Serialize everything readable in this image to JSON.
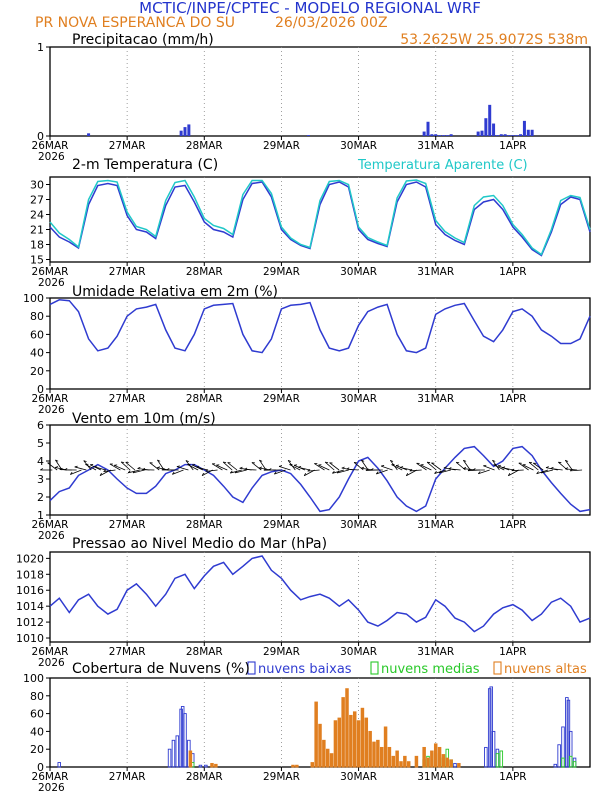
{
  "header": {
    "title": "MCTIC/INPE/CPTEC - MODELO REGIONAL WRF",
    "location": "PR NOVA ESPERANCA DO SU",
    "run": "26/03/2026 00Z",
    "coords": "53.2625W 25.9072S 538m"
  },
  "colors": {
    "blue": "#2f3bd0",
    "cyan": "#20c8c8",
    "orange": "#e07f20",
    "green": "#28c828",
    "title_blue": "#2233cc",
    "title_orange": "#e07f20"
  },
  "x_axis": {
    "ticks": [
      "26MAR",
      "27MAR",
      "28MAR",
      "29MAR",
      "30MAR",
      "31MAR",
      "1APR"
    ],
    "year": "2026"
  },
  "chart_data": [
    {
      "id": "precip",
      "type": "bar",
      "title": "Precipitacao (mm/h)",
      "ylim": [
        0,
        1
      ],
      "yticks": [
        "0",
        "1"
      ],
      "x": [
        0.5,
        1.7,
        1.75,
        1.8,
        3.35,
        4.85,
        4.9,
        4.95,
        5.0,
        5.05,
        5.1,
        5.15,
        5.2,
        5.55,
        5.6,
        5.65,
        5.7,
        5.75,
        5.8,
        5.85,
        5.9,
        5.95,
        6.0,
        6.05,
        6.1,
        6.15,
        6.2,
        6.25
      ],
      "values": [
        0.03,
        0.06,
        0.1,
        0.13,
        0.01,
        0.05,
        0.16,
        0.02,
        0.02,
        0.01,
        0.01,
        0.01,
        0.02,
        0.05,
        0.06,
        0.2,
        0.35,
        0.14,
        0.01,
        0.02,
        0.02,
        0.01,
        0.01,
        0.01,
        0.02,
        0.17,
        0.07,
        0.07
      ]
    },
    {
      "id": "temperature",
      "type": "line",
      "title": "2-m Temperatura (C)",
      "legend": "Temperatura Aparente (C)",
      "ylim": [
        14.5,
        31.5
      ],
      "yticks": [
        "15",
        "18",
        "21",
        "24",
        "27",
        "30"
      ],
      "series": [
        {
          "name": "2-m Temperatura (C)",
          "x": [
            0,
            0.12,
            0.25,
            0.37,
            0.5,
            0.62,
            0.75,
            0.87,
            1.0,
            1.12,
            1.25,
            1.37,
            1.5,
            1.62,
            1.75,
            1.87,
            2.0,
            2.12,
            2.25,
            2.37,
            2.5,
            2.62,
            2.75,
            2.87,
            3.0,
            3.12,
            3.25,
            3.37,
            3.5,
            3.62,
            3.75,
            3.87,
            4.0,
            4.12,
            4.25,
            4.37,
            4.5,
            4.62,
            4.75,
            4.87,
            5.0,
            5.12,
            5.25,
            5.37,
            5.5,
            5.62,
            5.75,
            5.87,
            6.0,
            6.12,
            6.25,
            6.37,
            6.5,
            6.62,
            6.75,
            6.87,
            7.0
          ],
          "values": [
            21.5,
            19.5,
            18.5,
            17.3,
            26.0,
            29.8,
            30.2,
            29.8,
            23.8,
            21.0,
            20.5,
            19.2,
            25.8,
            29.5,
            29.8,
            26.5,
            22.5,
            21.0,
            20.5,
            19.5,
            27.0,
            30.2,
            30.5,
            27.5,
            21.0,
            19.0,
            17.8,
            17.2,
            26.0,
            30.0,
            30.5,
            29.5,
            21.0,
            19.0,
            18.2,
            17.6,
            26.5,
            30.0,
            30.5,
            29.5,
            22.0,
            20.0,
            18.8,
            18.0,
            25.0,
            26.5,
            27.0,
            25.0,
            21.5,
            19.5,
            17.0,
            15.8,
            20.5,
            26.0,
            27.5,
            27.0,
            20.5
          ]
        },
        {
          "name": "Temperatura Aparente (C)",
          "x": [
            0,
            0.12,
            0.25,
            0.37,
            0.5,
            0.62,
            0.75,
            0.87,
            1.0,
            1.12,
            1.25,
            1.37,
            1.5,
            1.62,
            1.75,
            1.87,
            2.0,
            2.12,
            2.25,
            2.37,
            2.5,
            2.62,
            2.75,
            2.87,
            3.0,
            3.12,
            3.25,
            3.37,
            3.5,
            3.62,
            3.75,
            3.87,
            4.0,
            4.12,
            4.25,
            4.37,
            4.5,
            4.62,
            4.75,
            4.87,
            5.0,
            5.12,
            5.25,
            5.37,
            5.5,
            5.62,
            5.75,
            5.87,
            6.0,
            6.12,
            6.25,
            6.37,
            6.5,
            6.62,
            6.75,
            6.87,
            7.0
          ],
          "values": [
            22.5,
            20.3,
            19.0,
            17.5,
            27.0,
            30.6,
            30.8,
            30.5,
            24.5,
            21.6,
            21.0,
            19.6,
            26.8,
            30.4,
            30.8,
            27.5,
            23.2,
            21.8,
            21.2,
            20.0,
            28.0,
            30.8,
            30.8,
            28.2,
            21.5,
            19.3,
            18.0,
            17.4,
            26.8,
            30.6,
            30.8,
            30.0,
            21.5,
            19.4,
            18.5,
            17.8,
            27.3,
            30.7,
            30.9,
            30.2,
            22.8,
            20.6,
            19.3,
            18.4,
            25.8,
            27.5,
            27.8,
            25.8,
            22.0,
            20.0,
            17.3,
            16.0,
            21.0,
            26.8,
            27.8,
            27.4,
            21.0
          ]
        }
      ]
    },
    {
      "id": "humidity",
      "type": "line",
      "title": "Umidade Relativa em 2m (%)",
      "ylim": [
        0,
        100
      ],
      "yticks": [
        "0",
        "20",
        "40",
        "60",
        "80",
        "100"
      ],
      "series": [
        {
          "name": "Umidade Relativa em 2m (%)",
          "x": [
            0,
            0.12,
            0.25,
            0.37,
            0.5,
            0.62,
            0.75,
            0.87,
            1.0,
            1.12,
            1.25,
            1.37,
            1.5,
            1.62,
            1.75,
            1.87,
            2.0,
            2.12,
            2.25,
            2.37,
            2.5,
            2.62,
            2.75,
            2.87,
            3.0,
            3.12,
            3.25,
            3.37,
            3.5,
            3.62,
            3.75,
            3.87,
            4.0,
            4.12,
            4.25,
            4.37,
            4.5,
            4.62,
            4.75,
            4.87,
            5.0,
            5.12,
            5.25,
            5.37,
            5.5,
            5.62,
            5.75,
            5.87,
            6.0,
            6.12,
            6.25,
            6.37,
            6.5,
            6.62,
            6.75,
            6.87,
            7.0
          ],
          "values": [
            93,
            98,
            97,
            85,
            55,
            42,
            45,
            58,
            80,
            88,
            90,
            93,
            65,
            45,
            42,
            60,
            88,
            92,
            93,
            94,
            60,
            42,
            40,
            55,
            88,
            92,
            93,
            95,
            65,
            45,
            42,
            45,
            70,
            85,
            90,
            93,
            60,
            42,
            40,
            45,
            82,
            88,
            92,
            94,
            75,
            58,
            52,
            65,
            85,
            88,
            80,
            65,
            58,
            50,
            50,
            55,
            80
          ]
        }
      ]
    },
    {
      "id": "wind",
      "type": "line",
      "title": "Vento em 10m (m/s)",
      "ylim": [
        1,
        6
      ],
      "yticks": [
        "1",
        "2",
        "3",
        "4",
        "5",
        "6"
      ],
      "series": [
        {
          "name": "Vento em 10m (m/s)",
          "x": [
            0,
            0.12,
            0.25,
            0.37,
            0.5,
            0.62,
            0.75,
            0.87,
            1.0,
            1.12,
            1.25,
            1.37,
            1.5,
            1.62,
            1.75,
            1.87,
            2.0,
            2.12,
            2.25,
            2.37,
            2.5,
            2.62,
            2.75,
            2.87,
            3.0,
            3.12,
            3.25,
            3.37,
            3.5,
            3.62,
            3.75,
            3.87,
            4.0,
            4.12,
            4.25,
            4.37,
            4.5,
            4.62,
            4.75,
            4.87,
            5.0,
            5.12,
            5.25,
            5.37,
            5.5,
            5.62,
            5.75,
            5.87,
            6.0,
            6.12,
            6.25,
            6.37,
            6.5,
            6.62,
            6.75,
            6.87,
            7.0
          ],
          "values": [
            1.8,
            2.3,
            2.5,
            3.2,
            3.5,
            3.8,
            3.5,
            3.0,
            2.5,
            2.2,
            2.2,
            2.6,
            3.3,
            3.5,
            3.8,
            3.8,
            3.5,
            3.2,
            2.6,
            2.0,
            1.7,
            2.5,
            3.2,
            3.4,
            3.5,
            3.3,
            2.7,
            2.0,
            1.2,
            1.3,
            2.0,
            3.0,
            4.0,
            4.2,
            3.6,
            2.9,
            2.0,
            1.5,
            1.2,
            1.5,
            3.0,
            3.6,
            4.2,
            4.7,
            4.8,
            4.3,
            3.7,
            4.0,
            4.7,
            4.8,
            4.3,
            3.5,
            2.8,
            2.2,
            1.6,
            1.2,
            1.3
          ]
        }
      ]
    },
    {
      "id": "pressure",
      "type": "line",
      "title": "Pressao ao Nivel Medio do Mar (hPa)",
      "ylim": [
        1009.5,
        1020.8
      ],
      "yticks": [
        "1010",
        "1012",
        "1014",
        "1016",
        "1018",
        "1020"
      ],
      "series": [
        {
          "name": "Pressao ao Nivel Medio do Mar (hPa)",
          "x": [
            0,
            0.12,
            0.25,
            0.37,
            0.5,
            0.62,
            0.75,
            0.87,
            1.0,
            1.12,
            1.25,
            1.37,
            1.5,
            1.62,
            1.75,
            1.87,
            2.0,
            2.12,
            2.25,
            2.37,
            2.5,
            2.62,
            2.75,
            2.87,
            3.0,
            3.12,
            3.25,
            3.37,
            3.5,
            3.62,
            3.75,
            3.87,
            4.0,
            4.12,
            4.25,
            4.37,
            4.5,
            4.62,
            4.75,
            4.87,
            5.0,
            5.12,
            5.25,
            5.37,
            5.5,
            5.62,
            5.75,
            5.87,
            6.0,
            6.12,
            6.25,
            6.37,
            6.5,
            6.62,
            6.75,
            6.87,
            7.0
          ],
          "values": [
            1014.0,
            1015.0,
            1013.2,
            1014.8,
            1015.5,
            1014.0,
            1013.0,
            1013.6,
            1016.0,
            1016.8,
            1015.5,
            1014.0,
            1015.5,
            1017.5,
            1018.0,
            1016.2,
            1017.8,
            1019.0,
            1019.5,
            1018.0,
            1019.0,
            1020.0,
            1020.3,
            1018.5,
            1017.5,
            1016.0,
            1014.8,
            1015.2,
            1015.5,
            1015.0,
            1014.0,
            1014.8,
            1013.5,
            1012.0,
            1011.5,
            1012.2,
            1013.2,
            1013.0,
            1012.0,
            1012.6,
            1014.8,
            1014.0,
            1012.5,
            1012.0,
            1010.8,
            1011.5,
            1013.0,
            1013.8,
            1014.2,
            1013.5,
            1012.2,
            1013.0,
            1014.5,
            1015.0,
            1014.0,
            1012.0,
            1012.5
          ]
        }
      ]
    },
    {
      "id": "clouds",
      "type": "bar",
      "title": "Cobertura de Nuvens (%)",
      "legend": [
        "nuvens baixas",
        "nuvens medias",
        "nuvens altas"
      ],
      "ylim": [
        0,
        100
      ],
      "yticks": [
        "0",
        "20",
        "40",
        "60",
        "80",
        "100"
      ],
      "series": [
        {
          "name": "nuvens baixas",
          "x": [
            0.12,
            1.55,
            1.6,
            1.65,
            1.7,
            1.72,
            1.75,
            1.8,
            1.85,
            1.95,
            2.02,
            5.25,
            5.65,
            5.7,
            5.72,
            5.75,
            5.8,
            6.55,
            6.6,
            6.65,
            6.7,
            6.72,
            6.75,
            6.8
          ],
          "values": [
            5,
            20,
            30,
            35,
            65,
            68,
            60,
            30,
            15,
            2,
            2,
            4,
            22,
            88,
            90,
            40,
            20,
            3,
            25,
            45,
            78,
            75,
            40,
            10
          ]
        },
        {
          "name": "nuvens medias",
          "x": [
            1.85,
            4.85,
            4.9,
            5.0,
            5.1,
            5.15,
            5.2,
            5.8,
            5.85,
            6.65,
            6.75,
            6.8
          ],
          "values": [
            5,
            8,
            12,
            15,
            10,
            20,
            8,
            15,
            18,
            10,
            12,
            6
          ]
        },
        {
          "name": "nuvens altas",
          "x": [
            1.82,
            2.1,
            2.15,
            3.15,
            3.2,
            3.4,
            3.45,
            3.5,
            3.55,
            3.6,
            3.65,
            3.7,
            3.75,
            3.8,
            3.85,
            3.9,
            3.95,
            4.0,
            4.05,
            4.1,
            4.15,
            4.2,
            4.25,
            4.3,
            4.35,
            4.4,
            4.45,
            4.5,
            4.55,
            4.6,
            4.65,
            4.75,
            4.85,
            4.9,
            4.95,
            5.0,
            5.05,
            5.1,
            5.15,
            5.2,
            5.3
          ],
          "values": [
            18,
            4,
            3,
            2,
            2,
            5,
            73,
            48,
            30,
            20,
            15,
            52,
            55,
            78,
            88,
            58,
            62,
            52,
            66,
            55,
            40,
            28,
            30,
            22,
            45,
            22,
            12,
            18,
            6,
            12,
            6,
            12,
            22,
            10,
            18,
            26,
            22,
            14,
            10,
            8,
            4
          ]
        }
      ]
    }
  ]
}
